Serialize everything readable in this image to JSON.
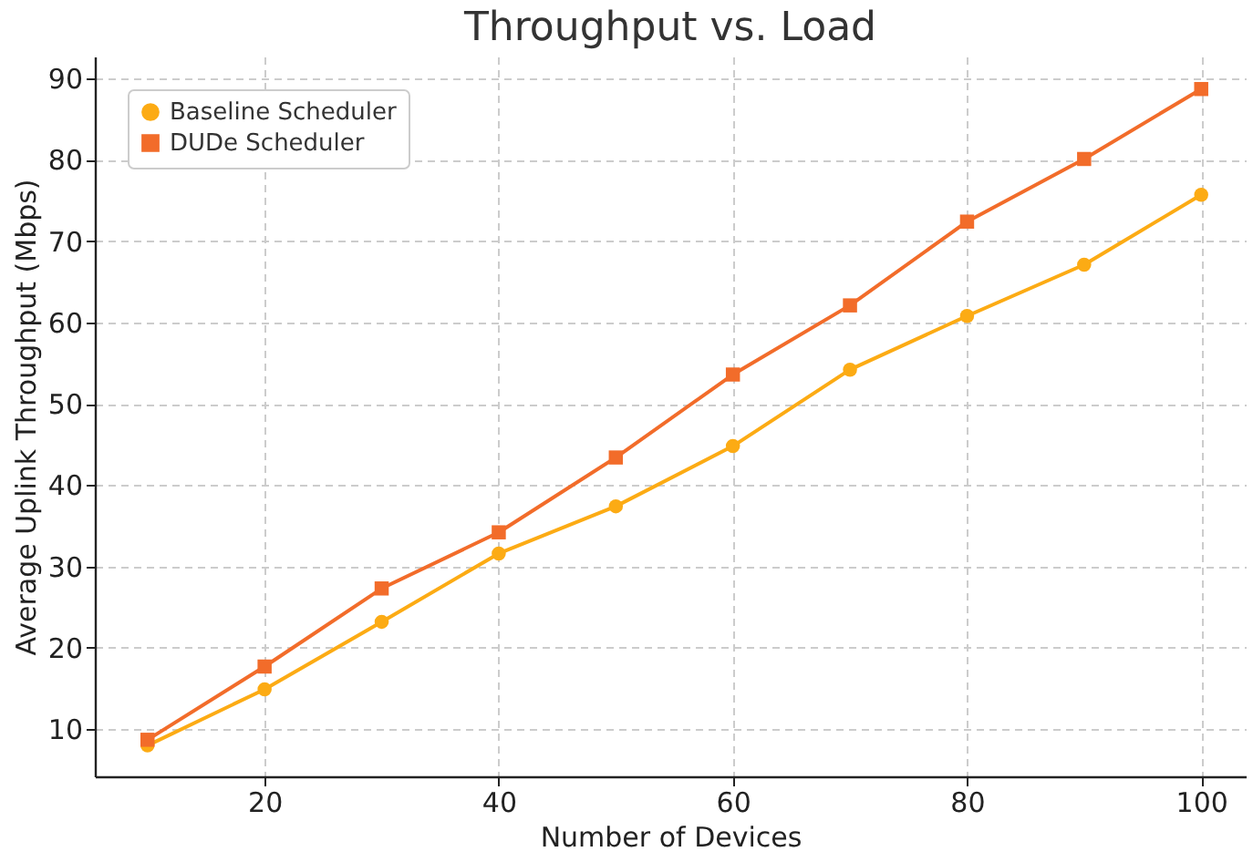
{
  "chart_data": {
    "type": "line",
    "title": "Throughput vs. Load",
    "xlabel": "Number of Devices",
    "ylabel": "Average Uplink Throughput (Mbps)",
    "x": [
      10,
      20,
      30,
      40,
      50,
      60,
      70,
      80,
      90,
      100
    ],
    "series": [
      {
        "name": "Baseline Scheduler",
        "color": "#fcab14",
        "marker": "circle",
        "values": [
          8.0,
          14.9,
          23.2,
          31.6,
          37.4,
          44.8,
          54.2,
          60.8,
          67.1,
          75.7
        ]
      },
      {
        "name": "DUDe Scheduler",
        "color": "#f26c2a",
        "marker": "square",
        "values": [
          8.7,
          17.7,
          27.3,
          34.2,
          43.4,
          53.6,
          62.1,
          72.4,
          80.1,
          88.7
        ]
      }
    ],
    "xlim": [
      5.5,
      103.8
    ],
    "xticks": [
      20,
      40,
      60,
      80,
      100
    ],
    "ylim": [
      4.2,
      92.7
    ],
    "yticks": [
      10,
      20,
      30,
      40,
      50,
      60,
      70,
      80,
      90
    ],
    "grid": true,
    "legend": "top left",
    "line_style": "solid"
  }
}
